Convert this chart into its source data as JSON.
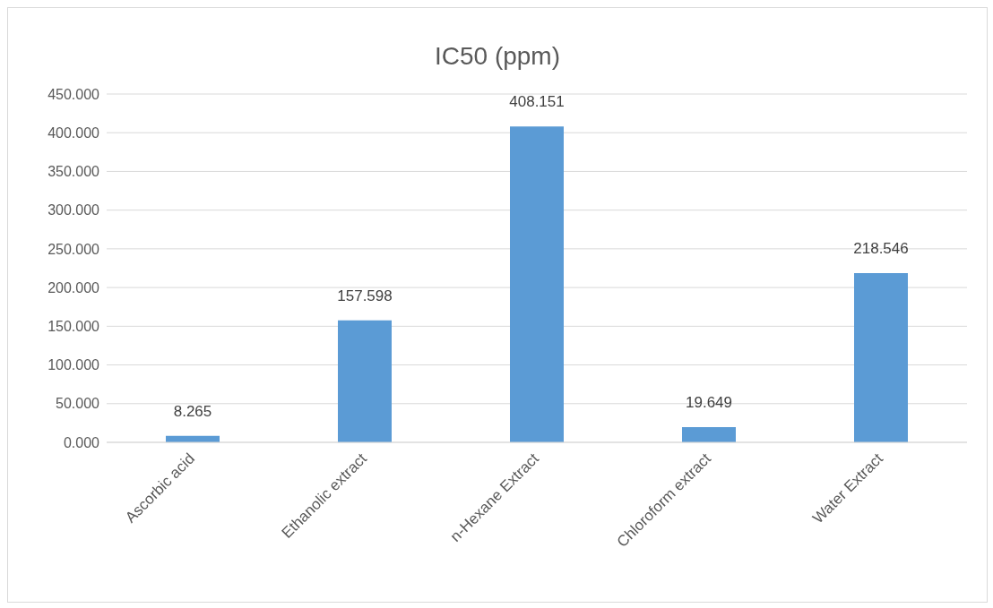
{
  "chart_data": {
    "type": "bar",
    "title": "IC50 (ppm)",
    "categories": [
      "Ascorbic acid",
      "Ethanolic extract",
      "n-Hexane Extract",
      "Chloroform extract",
      "Water Extract"
    ],
    "values": [
      8.265,
      157.598,
      408.151,
      19.649,
      218.546
    ],
    "color": "#5b9bd5",
    "ylim": [
      0,
      450
    ],
    "yticks": [
      {
        "value": 0,
        "label": "0.000"
      },
      {
        "value": 50,
        "label": "50.000"
      },
      {
        "value": 100,
        "label": "100.000"
      },
      {
        "value": 150,
        "label": "150.000"
      },
      {
        "value": 200,
        "label": "200.000"
      },
      {
        "value": 250,
        "label": "250.000"
      },
      {
        "value": 300,
        "label": "300.000"
      },
      {
        "value": 350,
        "label": "350.000"
      },
      {
        "value": 400,
        "label": "400.000"
      },
      {
        "value": 450,
        "label": "450.000"
      }
    ],
    "grid": "y",
    "data_labels": true,
    "legend": false
  }
}
